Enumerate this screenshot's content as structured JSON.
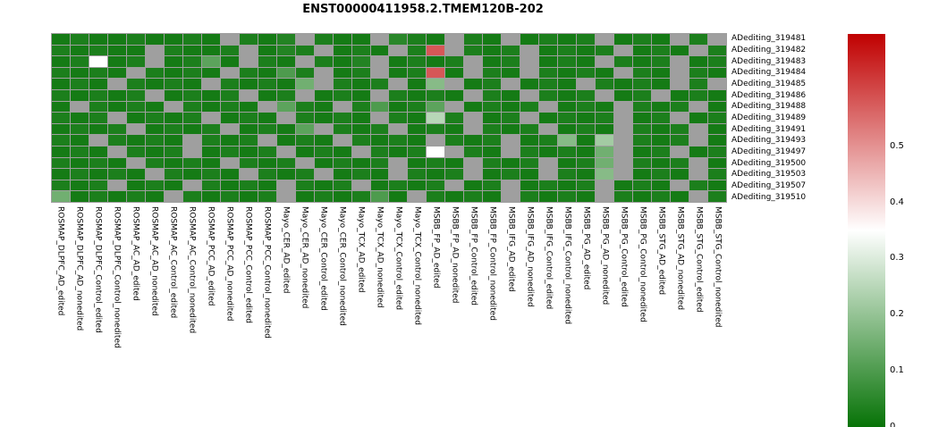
{
  "chart_data": {
    "type": "heatmap",
    "title": "ENST00000411958.2.TMEM120B-202",
    "rows": [
      "ADediting_319481",
      "ADediting_319482",
      "ADediting_319483",
      "ADediting_319484",
      "ADediting_319485",
      "ADediting_319486",
      "ADediting_319488",
      "ADediting_319489",
      "ADediting_319491",
      "ADediting_319493",
      "ADediting_319497",
      "ADediting_319500",
      "ADediting_319503",
      "ADediting_319507",
      "ADediting_319510"
    ],
    "columns": [
      "ROSMAP_DLPFC_AD_edited",
      "ROSMAP_DLPFC_AD_nonedited",
      "ROSMAP_DLPFC_Control_edited",
      "ROSMAP_DLPFC_Control_nonedited",
      "ROSMAP_AC_AD_edited",
      "ROSMAP_AC_AD_nonedited",
      "ROSMAP_AC_Control_edited",
      "ROSMAP_AC_Control_nonedited",
      "ROSMAP_PCC_AD_edited",
      "ROSMAP_PCC_AD_nonedited",
      "ROSMAP_PCC_Control_edited",
      "ROSMAP_PCC_Control_nonedited",
      "Mayo_CER_AD_edited",
      "Mayo_CER_AD_nonedited",
      "Mayo_CER_Control_edited",
      "Mayo_CER_Control_nonedited",
      "Mayo_TCX_AD_edited",
      "Mayo_TCX_AD_nonedited",
      "Mayo_TCX_Control_edited",
      "Mayo_TCX_Control_nonedited",
      "MSBB_FP_AD_edited",
      "MSBB_FP_AD_nonedited",
      "MSBB_FP_Control_edited",
      "MSBB_FP_Control_nonedited",
      "MSBB_IFG_AD_edited",
      "MSBB_IFG_AD_nonedited",
      "MSBB_IFG_Control_edited",
      "MSBB_IFG_Control_nonedited",
      "MSBB_PG_AD_edited",
      "MSBB_PG_AD_nonedited",
      "MSBB_PG_Control_edited",
      "MSBB_PG_Control_nonedited",
      "MSBB_STG_AD_edited",
      "MSBB_STG_AD_nonedited",
      "MSBB_STG_Control_edited",
      "MSBB_STG_Control_nonedited"
    ],
    "values": [
      [
        0.02,
        0.03,
        0.02,
        0.02,
        0.03,
        0.02,
        0.02,
        0.03,
        0.02,
        null,
        0.03,
        0.02,
        0.04,
        null,
        0.03,
        0.02,
        0.02,
        null,
        0.05,
        0.03,
        0.02,
        null,
        0.03,
        0.02,
        null,
        0.02,
        0.03,
        0.02,
        0.03,
        null,
        0.02,
        0.03,
        0.02,
        null,
        0.03,
        null
      ],
      [
        0.03,
        0.02,
        0.03,
        0.02,
        0.02,
        null,
        0.03,
        0.02,
        0.02,
        0.03,
        null,
        0.02,
        0.04,
        0.03,
        null,
        0.02,
        0.03,
        0.02,
        null,
        0.03,
        0.58,
        null,
        0.03,
        0.02,
        0.03,
        null,
        0.02,
        0.03,
        0.02,
        0.03,
        null,
        0.02,
        0.03,
        0.02,
        null,
        0.03
      ],
      [
        0.02,
        0.03,
        0.35,
        0.02,
        0.03,
        null,
        0.02,
        0.03,
        0.12,
        0.02,
        null,
        0.03,
        0.02,
        null,
        0.03,
        0.02,
        0.04,
        null,
        0.02,
        0.03,
        0.02,
        0.03,
        null,
        0.02,
        0.03,
        null,
        0.02,
        0.03,
        0.02,
        null,
        0.03,
        0.02,
        0.03,
        null,
        0.02,
        0.03
      ],
      [
        0.03,
        0.02,
        0.03,
        0.02,
        null,
        0.03,
        0.02,
        0.03,
        0.02,
        null,
        0.03,
        0.02,
        0.1,
        0.03,
        null,
        0.02,
        0.03,
        null,
        0.02,
        0.03,
        0.58,
        0.02,
        null,
        0.03,
        0.02,
        null,
        0.03,
        0.02,
        0.03,
        0.02,
        null,
        0.03,
        0.02,
        null,
        0.03,
        0.02
      ],
      [
        0.02,
        0.03,
        0.02,
        null,
        0.03,
        0.02,
        0.03,
        0.02,
        null,
        0.03,
        0.02,
        0.03,
        0.02,
        0.15,
        null,
        0.03,
        0.02,
        0.03,
        null,
        0.02,
        0.18,
        null,
        0.02,
        0.03,
        null,
        0.02,
        0.03,
        0.02,
        null,
        0.03,
        0.02,
        0.03,
        0.02,
        null,
        0.03,
        null
      ],
      [
        0.03,
        0.02,
        0.03,
        0.02,
        0.03,
        null,
        0.02,
        0.03,
        0.02,
        0.03,
        null,
        0.02,
        0.03,
        null,
        0.02,
        0.03,
        0.02,
        null,
        0.03,
        0.02,
        0.03,
        0.02,
        null,
        0.03,
        0.02,
        null,
        0.03,
        0.02,
        0.03,
        null,
        0.02,
        0.03,
        null,
        0.02,
        0.03,
        0.02
      ],
      [
        0.02,
        null,
        0.03,
        0.02,
        0.03,
        0.02,
        null,
        0.03,
        0.02,
        0.03,
        0.02,
        null,
        0.12,
        0.03,
        0.02,
        null,
        0.03,
        0.1,
        0.02,
        0.03,
        0.12,
        null,
        0.02,
        0.03,
        0.02,
        0.03,
        null,
        0.02,
        0.03,
        0.02,
        null,
        0.03,
        0.02,
        0.03,
        null,
        0.02
      ],
      [
        0.03,
        0.02,
        0.03,
        null,
        0.02,
        0.03,
        0.02,
        0.03,
        null,
        0.02,
        0.03,
        0.02,
        null,
        0.03,
        0.02,
        0.03,
        0.02,
        null,
        0.03,
        0.02,
        0.25,
        0.03,
        null,
        0.02,
        0.03,
        null,
        0.02,
        0.03,
        0.02,
        0.03,
        null,
        0.02,
        0.03,
        null,
        0.02,
        0.03
      ],
      [
        0.02,
        0.03,
        0.02,
        0.03,
        null,
        0.02,
        0.03,
        0.02,
        0.03,
        null,
        0.02,
        0.03,
        0.02,
        0.12,
        null,
        0.03,
        0.02,
        0.03,
        null,
        0.02,
        0.03,
        0.02,
        null,
        0.03,
        0.02,
        0.03,
        null,
        0.02,
        0.03,
        0.02,
        null,
        0.03,
        0.02,
        0.03,
        null,
        0.02
      ],
      [
        0.03,
        0.02,
        null,
        0.03,
        0.02,
        0.03,
        0.02,
        null,
        0.03,
        0.02,
        0.03,
        null,
        0.02,
        0.03,
        0.02,
        null,
        0.03,
        0.02,
        0.03,
        0.02,
        null,
        0.03,
        0.02,
        0.03,
        null,
        0.02,
        0.03,
        0.18,
        0.02,
        0.22,
        null,
        0.03,
        0.02,
        0.03,
        null,
        0.02
      ],
      [
        0.02,
        0.03,
        0.02,
        null,
        0.03,
        0.02,
        0.03,
        null,
        0.02,
        0.03,
        0.02,
        0.03,
        null,
        0.02,
        0.03,
        0.02,
        null,
        0.03,
        0.02,
        0.03,
        0.35,
        null,
        0.03,
        0.02,
        null,
        0.03,
        0.02,
        0.03,
        0.02,
        0.15,
        null,
        0.02,
        0.03,
        null,
        0.02,
        0.03
      ],
      [
        0.03,
        0.02,
        0.03,
        0.02,
        null,
        0.03,
        0.02,
        0.03,
        0.02,
        null,
        0.03,
        0.02,
        0.03,
        null,
        0.02,
        0.03,
        0.02,
        0.03,
        null,
        0.02,
        0.03,
        0.02,
        null,
        0.03,
        0.02,
        0.03,
        null,
        0.02,
        0.03,
        0.15,
        null,
        0.03,
        0.02,
        0.03,
        null,
        0.02
      ],
      [
        0.02,
        0.03,
        0.02,
        0.03,
        0.02,
        null,
        0.03,
        0.02,
        0.03,
        0.02,
        null,
        0.03,
        0.02,
        0.03,
        null,
        0.02,
        0.03,
        0.02,
        null,
        0.03,
        0.02,
        0.03,
        null,
        0.02,
        0.03,
        0.02,
        null,
        0.03,
        0.02,
        0.18,
        null,
        0.02,
        0.03,
        0.02,
        null,
        0.03
      ],
      [
        0.03,
        0.02,
        0.03,
        null,
        0.02,
        0.03,
        0.02,
        null,
        0.03,
        0.02,
        0.03,
        0.02,
        null,
        0.03,
        0.02,
        0.03,
        null,
        0.02,
        0.03,
        0.02,
        0.03,
        null,
        0.02,
        0.03,
        null,
        0.02,
        0.03,
        0.02,
        0.03,
        null,
        0.02,
        0.03,
        0.02,
        null,
        0.03,
        0.02
      ],
      [
        0.15,
        0.02,
        0.03,
        0.02,
        0.03,
        0.02,
        null,
        0.03,
        0.02,
        0.03,
        0.02,
        0.03,
        null,
        0.02,
        0.03,
        0.02,
        0.03,
        0.1,
        0.02,
        null,
        0.03,
        0.02,
        0.03,
        0.02,
        null,
        0.03,
        0.02,
        0.03,
        0.02,
        null,
        0.03,
        0.02,
        0.03,
        0.02,
        null,
        0.03
      ]
    ],
    "na_color": "#9f9f9f",
    "colorscale": {
      "min": 0,
      "mid": 0.35,
      "max": 0.7,
      "low_color": "#077307",
      "mid_color": "#ffffff",
      "high_color": "#c00000"
    },
    "colorbar_ticks": [
      0.5,
      0.4,
      0.3,
      0.2,
      0.1,
      0
    ],
    "legend_position": "right",
    "grid_lines": "gray cell borders",
    "notes": "green-white-red diverging heatmap; gray cells = NA"
  }
}
